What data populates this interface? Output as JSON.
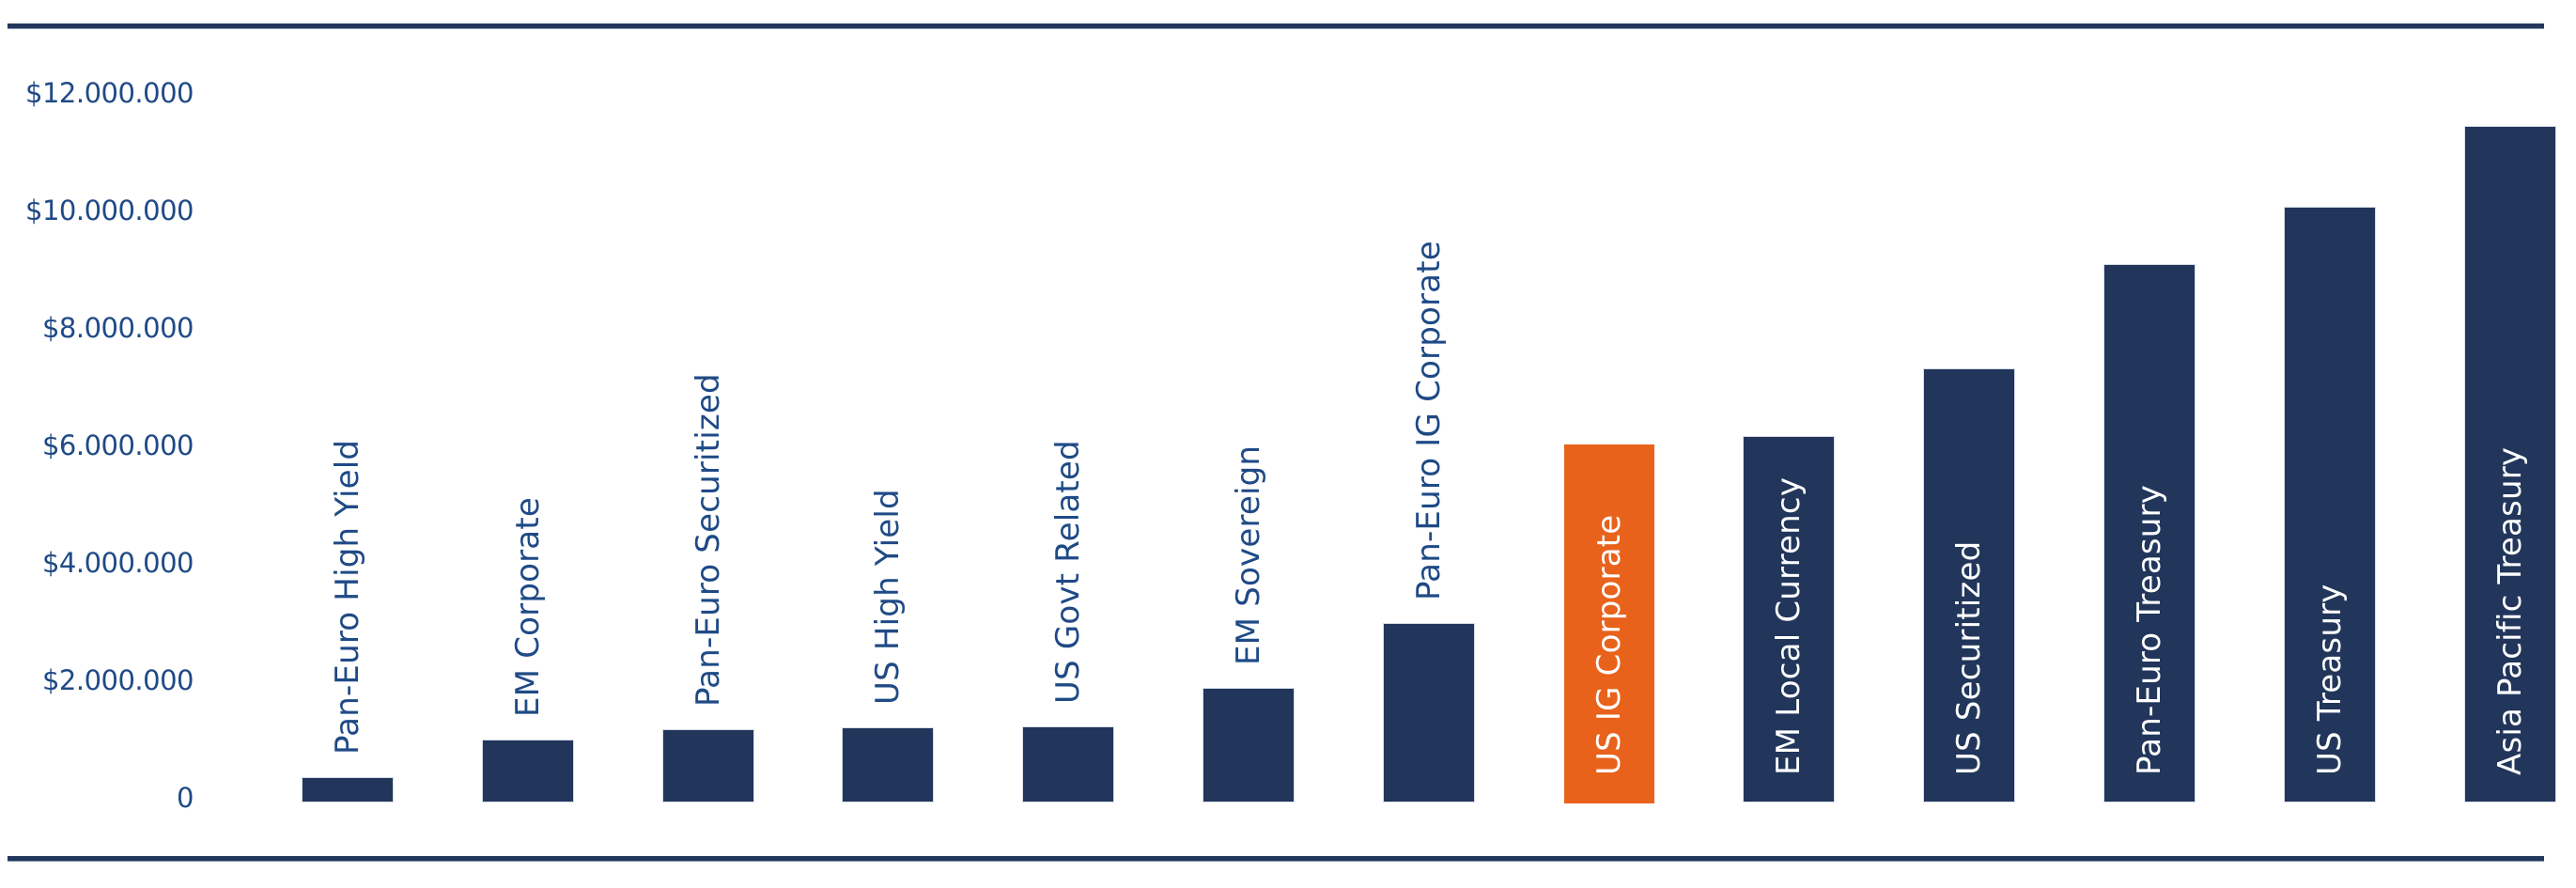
{
  "colors": {
    "bar": "#22365b",
    "highlight": "#e8621c",
    "axis_text": "#1f4a86",
    "inside_label": "#ffffff",
    "rule": "#23375c"
  },
  "y_axis": {
    "ticks": [
      {
        "value": 0,
        "label": "0"
      },
      {
        "value": 2000000,
        "label": "$2.000.000"
      },
      {
        "value": 4000000,
        "label": "$4.000.000"
      },
      {
        "value": 6000000,
        "label": "$6.000.000"
      },
      {
        "value": 8000000,
        "label": "$8.000.000"
      },
      {
        "value": 10000000,
        "label": "$10.000.000"
      },
      {
        "value": 12000000,
        "label": "$12.000.000"
      }
    ]
  },
  "chart_data": {
    "type": "bar",
    "title": "",
    "xlabel": "",
    "ylabel": "",
    "ylim": [
      0,
      12000000
    ],
    "grid": false,
    "legend": "none",
    "categories": [
      "Pan-Euro High Yield",
      "EM Corporate",
      "Pan-Euro Securitized",
      "US High Yield",
      "US Govt Related",
      "EM Sovereign",
      "Pan-Euro IG Corporate",
      "US IG Corporate",
      "EM Local Currency",
      "US Securitized",
      "Pan-Euro Treasury",
      "US Treasury",
      "Asia Pacific Treasury"
    ],
    "values": [
      400000,
      1040000,
      1220000,
      1250000,
      1260000,
      1920000,
      3020000,
      6080000,
      6210000,
      7360000,
      9140000,
      10110000,
      11490000
    ],
    "highlighted_category": "US IG Corporate",
    "label_placement": [
      "outside",
      "outside",
      "outside",
      "outside",
      "outside",
      "outside",
      "outside",
      "inside",
      "inside",
      "inside",
      "inside",
      "inside",
      "inside"
    ],
    "y_tick_labels": [
      "0",
      "$2.000.000",
      "$4.000.000",
      "$6.000.000",
      "$8.000.000",
      "$10.000.000",
      "$12.000.000"
    ]
  }
}
